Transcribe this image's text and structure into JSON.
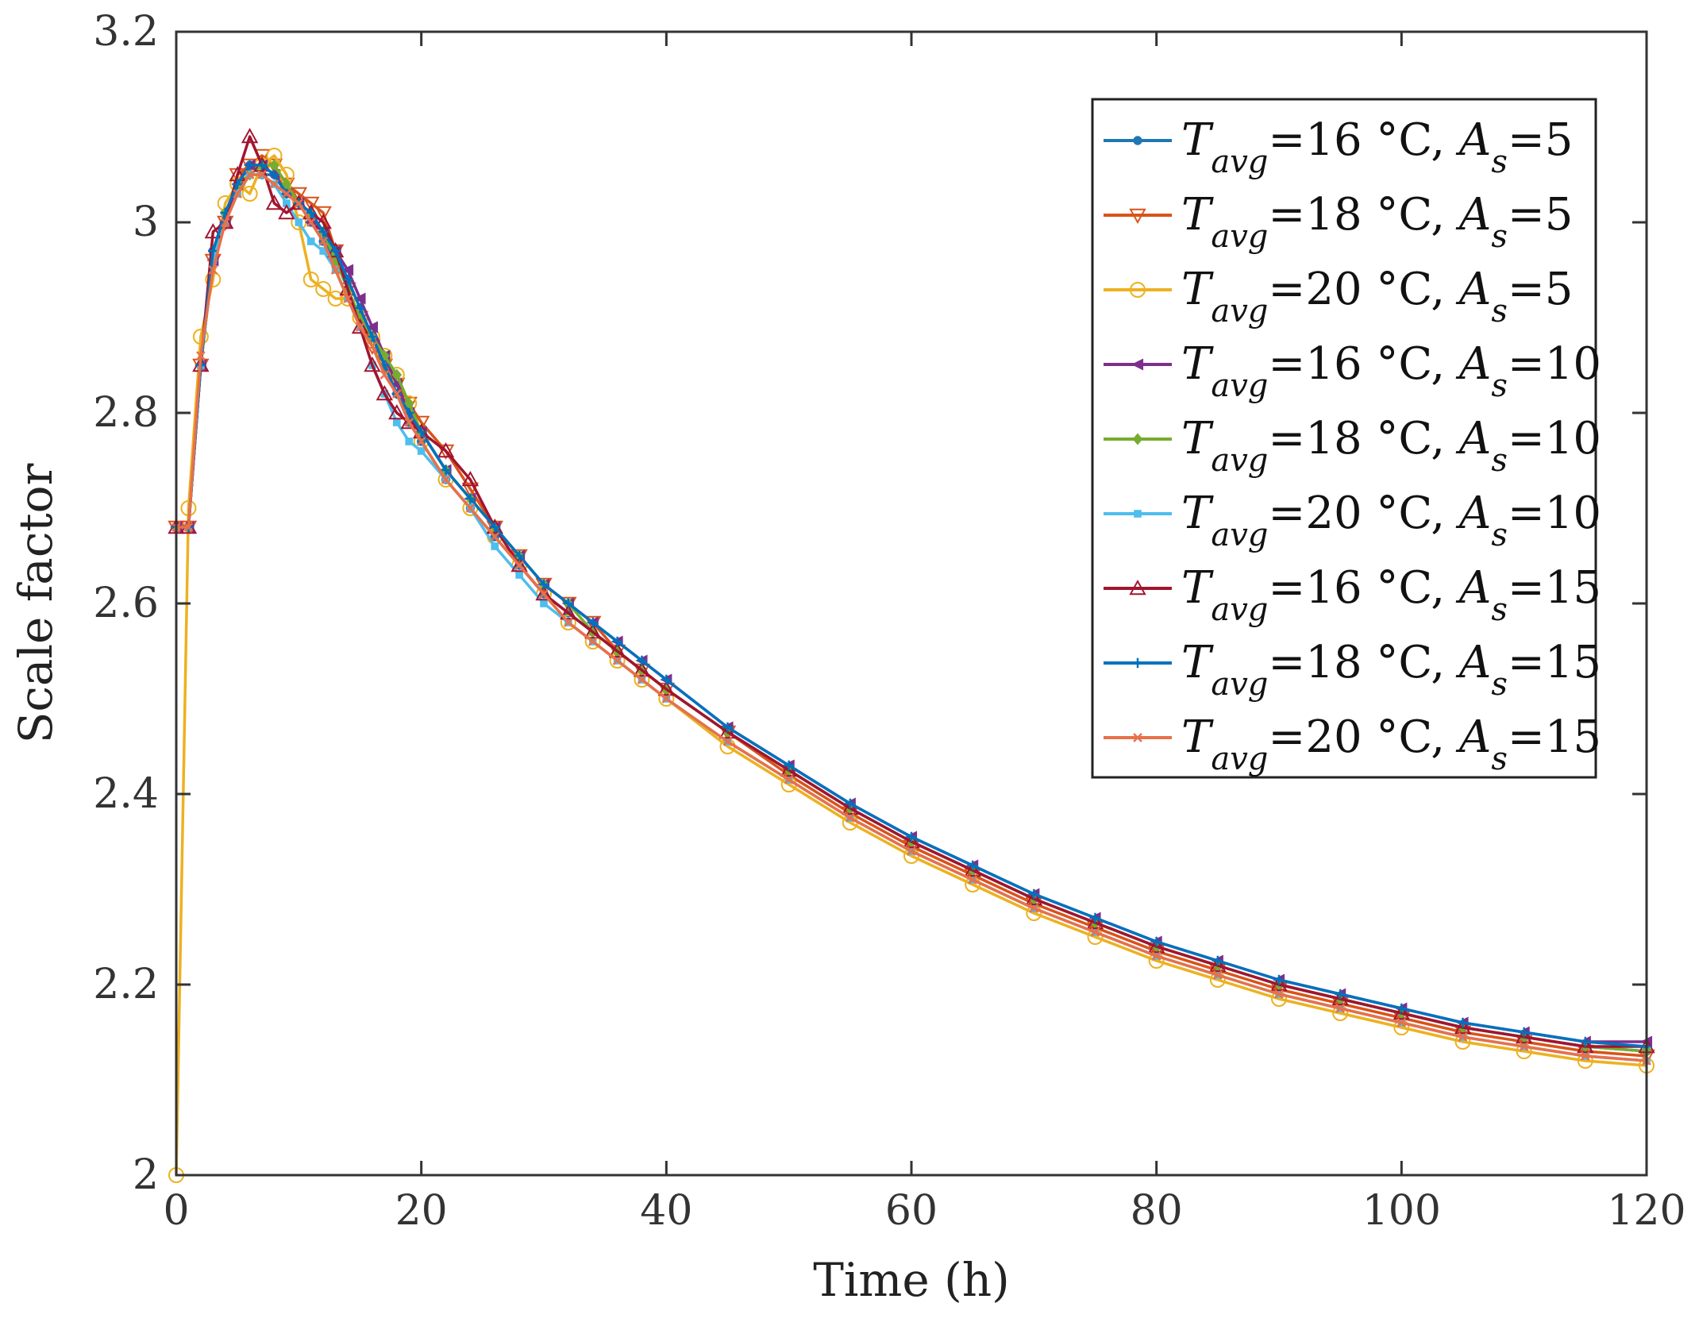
{
  "chart_data": {
    "type": "line",
    "title": "",
    "xlabel": "Time (h)",
    "ylabel": "Scale factor",
    "xlim": [
      0,
      120
    ],
    "ylim": [
      2,
      3.2
    ],
    "xticks": [
      "0",
      "20",
      "40",
      "60",
      "80",
      "100",
      "120"
    ],
    "yticks": [
      "2",
      "2.2",
      "2.4",
      "2.6",
      "2.8",
      "3",
      "3.2"
    ],
    "grid": false,
    "legend_position": "top-right",
    "x": [
      0,
      1,
      2,
      3,
      4,
      5,
      6,
      7,
      8,
      9,
      10,
      11,
      12,
      13,
      14,
      15,
      16,
      17,
      18,
      19,
      20,
      22,
      24,
      26,
      28,
      30,
      32,
      34,
      36,
      38,
      40,
      45,
      50,
      55,
      60,
      65,
      70,
      75,
      80,
      85,
      90,
      95,
      100,
      105,
      110,
      115,
      120
    ],
    "series": [
      {
        "name_main": "T",
        "name_sub": "avg",
        "temp": "=16 °C, ",
        "A": "A",
        "A_sub": "s",
        "A_val": "=5",
        "color": "#1f77b4",
        "marker": "circle",
        "values": [
          2.68,
          2.68,
          2.85,
          2.97,
          3.01,
          3.04,
          3.06,
          3.05,
          3.05,
          3.03,
          3.02,
          3.0,
          2.98,
          2.96,
          2.94,
          2.91,
          2.88,
          2.85,
          2.82,
          2.79,
          2.77,
          2.73,
          2.7,
          2.67,
          2.64,
          2.61,
          2.59,
          2.57,
          2.55,
          2.53,
          2.51,
          2.465,
          2.425,
          2.385,
          2.35,
          2.32,
          2.29,
          2.265,
          2.24,
          2.22,
          2.2,
          2.185,
          2.17,
          2.155,
          2.145,
          2.135,
          2.13
        ]
      },
      {
        "name_main": "T",
        "name_sub": "avg",
        "temp": "=18 °C, ",
        "A": "A",
        "A_sub": "s",
        "A_val": "=5",
        "color": "#d95319",
        "marker": "triangle-down",
        "values": [
          2.68,
          2.68,
          2.85,
          2.96,
          3.0,
          3.05,
          3.06,
          3.07,
          3.06,
          3.04,
          3.03,
          3.02,
          3.01,
          2.97,
          2.93,
          2.9,
          2.87,
          2.85,
          2.83,
          2.81,
          2.79,
          2.76,
          2.72,
          2.68,
          2.65,
          2.62,
          2.6,
          2.58,
          2.55,
          2.53,
          2.51,
          2.465,
          2.42,
          2.38,
          2.345,
          2.315,
          2.285,
          2.26,
          2.235,
          2.215,
          2.195,
          2.18,
          2.165,
          2.15,
          2.14,
          2.13,
          2.125
        ]
      },
      {
        "name_main": "T",
        "name_sub": "avg",
        "temp": "=20 °C, ",
        "A": "A",
        "A_sub": "s",
        "A_val": "=5",
        "color": "#edb120",
        "marker": "circle-open",
        "values": [
          2.0,
          2.7,
          2.88,
          2.94,
          3.02,
          3.04,
          3.03,
          3.06,
          3.07,
          3.05,
          3.0,
          2.94,
          2.93,
          2.92,
          2.92,
          2.9,
          2.88,
          2.86,
          2.84,
          2.81,
          2.77,
          2.73,
          2.7,
          2.67,
          2.64,
          2.61,
          2.58,
          2.56,
          2.54,
          2.52,
          2.5,
          2.45,
          2.41,
          2.37,
          2.335,
          2.305,
          2.275,
          2.25,
          2.225,
          2.205,
          2.185,
          2.17,
          2.155,
          2.14,
          2.13,
          2.12,
          2.115
        ]
      },
      {
        "name_main": "T",
        "name_sub": "avg",
        "temp": "=16 °C, ",
        "A": "A",
        "A_sub": "s",
        "A_val": "=10",
        "color": "#7e2f8e",
        "marker": "triangle-left",
        "values": [
          2.68,
          2.68,
          2.85,
          2.96,
          3.0,
          3.04,
          3.06,
          3.06,
          3.05,
          3.03,
          3.02,
          3.0,
          2.99,
          2.97,
          2.95,
          2.92,
          2.89,
          2.86,
          2.83,
          2.8,
          2.78,
          2.74,
          2.71,
          2.68,
          2.65,
          2.62,
          2.6,
          2.58,
          2.56,
          2.54,
          2.52,
          2.47,
          2.43,
          2.39,
          2.355,
          2.325,
          2.295,
          2.27,
          2.245,
          2.225,
          2.205,
          2.19,
          2.175,
          2.16,
          2.15,
          2.14,
          2.14
        ]
      },
      {
        "name_main": "T",
        "name_sub": "avg",
        "temp": "=18 °C, ",
        "A": "A",
        "A_sub": "s",
        "A_val": "=10",
        "color": "#77ac30",
        "marker": "diamond",
        "values": [
          2.68,
          2.68,
          2.85,
          2.96,
          3.01,
          3.04,
          3.05,
          3.06,
          3.06,
          3.04,
          3.02,
          3.01,
          2.99,
          2.96,
          2.93,
          2.9,
          2.88,
          2.86,
          2.84,
          2.81,
          2.78,
          2.74,
          2.71,
          2.68,
          2.65,
          2.62,
          2.6,
          2.57,
          2.55,
          2.53,
          2.51,
          2.465,
          2.425,
          2.385,
          2.35,
          2.32,
          2.29,
          2.265,
          2.24,
          2.22,
          2.2,
          2.185,
          2.17,
          2.155,
          2.145,
          2.135,
          2.13
        ]
      },
      {
        "name_main": "T",
        "name_sub": "avg",
        "temp": "=20 °C, ",
        "A": "A",
        "A_sub": "s",
        "A_val": "=10",
        "color": "#4dbeee",
        "marker": "square",
        "values": [
          2.68,
          2.68,
          2.85,
          2.96,
          3.0,
          3.03,
          3.05,
          3.05,
          3.04,
          3.02,
          3.0,
          2.98,
          2.97,
          2.95,
          2.92,
          2.89,
          2.85,
          2.82,
          2.79,
          2.77,
          2.76,
          2.73,
          2.7,
          2.66,
          2.63,
          2.6,
          2.58,
          2.56,
          2.54,
          2.52,
          2.5,
          2.455,
          2.415,
          2.375,
          2.34,
          2.31,
          2.28,
          2.255,
          2.23,
          2.21,
          2.19,
          2.175,
          2.16,
          2.145,
          2.135,
          2.125,
          2.12
        ]
      },
      {
        "name_main": "T",
        "name_sub": "avg",
        "temp": "=16 °C, ",
        "A": "A",
        "A_sub": "s",
        "A_val": "=15",
        "color": "#a2142f",
        "marker": "triangle-up",
        "values": [
          2.68,
          2.68,
          2.85,
          2.99,
          3.0,
          3.05,
          3.09,
          3.06,
          3.02,
          3.01,
          3.02,
          3.01,
          3.0,
          2.97,
          2.93,
          2.89,
          2.85,
          2.82,
          2.8,
          2.79,
          2.78,
          2.76,
          2.73,
          2.68,
          2.64,
          2.61,
          2.59,
          2.57,
          2.55,
          2.53,
          2.51,
          2.465,
          2.425,
          2.385,
          2.35,
          2.32,
          2.29,
          2.265,
          2.24,
          2.22,
          2.2,
          2.185,
          2.17,
          2.155,
          2.145,
          2.135,
          2.135
        ]
      },
      {
        "name_main": "T",
        "name_sub": "avg",
        "temp": "=18 °C, ",
        "A": "A",
        "A_sub": "s",
        "A_val": "=15",
        "color": "#0072bd",
        "marker": "plus",
        "values": [
          2.68,
          2.68,
          2.85,
          2.97,
          3.01,
          3.04,
          3.06,
          3.06,
          3.05,
          3.03,
          3.02,
          3.01,
          2.99,
          2.97,
          2.94,
          2.91,
          2.88,
          2.85,
          2.82,
          2.8,
          2.78,
          2.74,
          2.71,
          2.68,
          2.65,
          2.62,
          2.6,
          2.58,
          2.56,
          2.54,
          2.52,
          2.47,
          2.43,
          2.39,
          2.355,
          2.325,
          2.295,
          2.27,
          2.245,
          2.225,
          2.205,
          2.19,
          2.175,
          2.16,
          2.15,
          2.14,
          2.135
        ]
      },
      {
        "name_main": "T",
        "name_sub": "avg",
        "temp": "=20 °C, ",
        "A": "A",
        "A_sub": "s",
        "A_val": "=15",
        "color": "#e8704a",
        "marker": "x",
        "values": [
          2.68,
          2.68,
          2.86,
          2.95,
          3.0,
          3.03,
          3.05,
          3.05,
          3.04,
          3.03,
          3.02,
          3.0,
          2.98,
          2.95,
          2.92,
          2.89,
          2.87,
          2.84,
          2.82,
          2.79,
          2.77,
          2.73,
          2.7,
          2.67,
          2.64,
          2.61,
          2.58,
          2.56,
          2.54,
          2.52,
          2.5,
          2.455,
          2.415,
          2.375,
          2.34,
          2.31,
          2.28,
          2.255,
          2.23,
          2.21,
          2.19,
          2.175,
          2.16,
          2.145,
          2.135,
          2.125,
          2.12
        ]
      }
    ]
  }
}
